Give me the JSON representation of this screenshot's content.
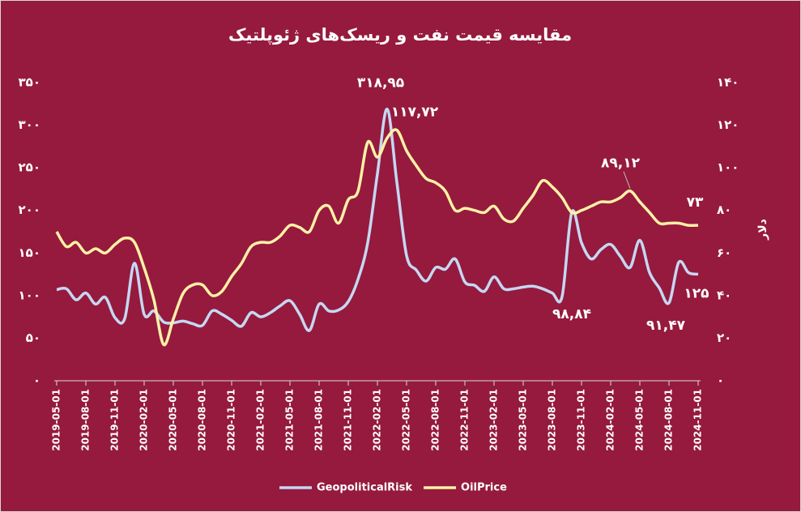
{
  "chart_data": {
    "type": "line",
    "title": "مقایسه قیمت نفت و ریسک‌های ژئوپلتیک",
    "y2label": "دلار",
    "categories": [
      "2019-05-01",
      null,
      null,
      "2019-08-01",
      null,
      null,
      "2019-11-01",
      null,
      null,
      "2020-02-01",
      null,
      null,
      "2020-05-01",
      null,
      null,
      "2020-08-01",
      null,
      null,
      "2020-11-01",
      null,
      null,
      "2021-02-01",
      null,
      null,
      "2021-05-01",
      null,
      null,
      "2021-08-01",
      null,
      null,
      "2021-11-01",
      null,
      null,
      "2022-02-01",
      null,
      null,
      "2022-05-01",
      null,
      null,
      "2022-08-01",
      null,
      null,
      "2022-11-01",
      null,
      null,
      "2023-02-01",
      null,
      null,
      "2023-05-01",
      null,
      null,
      "2023-08-01",
      null,
      null,
      "2023-11-01",
      null,
      null,
      "2024-02-01",
      null,
      null,
      "2024-05-01",
      null,
      null,
      "2024-08-01",
      null,
      null,
      "2024-11-01"
    ],
    "series": [
      {
        "name": "GeopoliticalRisk",
        "color": "#c6d7f2",
        "axis": "y",
        "values": [
          107,
          108,
          95,
          103,
          90,
          98,
          74,
          73,
          138,
          78,
          82,
          69,
          68,
          70,
          67,
          65,
          82,
          78,
          71,
          64,
          80,
          75,
          80,
          88,
          94,
          78,
          59,
          90,
          82,
          83,
          93,
          119,
          162,
          243,
          318.95,
          233,
          147,
          130,
          117,
          133,
          131,
          143,
          116,
          112,
          105,
          122,
          108,
          108,
          110,
          111,
          108,
          103,
          98.84,
          198,
          162,
          143,
          154,
          160,
          146,
          133,
          165,
          127,
          109,
          91.47,
          139,
          127,
          125
        ],
        "value_labels": [
          null,
          null,
          null,
          null,
          null,
          null,
          null,
          null,
          null,
          null,
          null,
          null,
          null,
          null,
          null,
          null,
          null,
          null,
          null,
          null,
          null,
          null,
          null,
          null,
          null,
          null,
          null,
          null,
          null,
          null,
          null,
          null,
          null,
          null,
          "۳۱۸,۹۵",
          null,
          null,
          null,
          null,
          null,
          null,
          null,
          null,
          null,
          null,
          null,
          null,
          null,
          null,
          null,
          null,
          null,
          "۹۸,۸۴",
          null,
          null,
          null,
          null,
          null,
          null,
          null,
          null,
          null,
          null,
          "۹۱,۴۷",
          null,
          null,
          "۱۲۵"
        ]
      },
      {
        "name": "OilPrice",
        "color": "#fdf1a6",
        "axis": "y2",
        "values": [
          70,
          63,
          65,
          60,
          62,
          60,
          64,
          67,
          65,
          53,
          38,
          17,
          29,
          41,
          45,
          45,
          40,
          42,
          49,
          55,
          63,
          65,
          65,
          68,
          73,
          72,
          70,
          80,
          82,
          74,
          85,
          89,
          112,
          105,
          114,
          117.72,
          108,
          101,
          95,
          93,
          89,
          80,
          81,
          80,
          79,
          82,
          76,
          75,
          81,
          87,
          94,
          91,
          86,
          79,
          80,
          82,
          84,
          84,
          86,
          89.12,
          84,
          79,
          74,
          74,
          74,
          73,
          73
        ],
        "value_labels": [
          null,
          null,
          null,
          null,
          null,
          null,
          null,
          null,
          null,
          null,
          null,
          null,
          null,
          null,
          null,
          null,
          null,
          null,
          null,
          null,
          null,
          null,
          null,
          null,
          null,
          null,
          null,
          null,
          null,
          null,
          null,
          null,
          null,
          null,
          null,
          "۱۱۷,۷۲",
          null,
          null,
          null,
          null,
          null,
          null,
          null,
          null,
          null,
          null,
          null,
          null,
          null,
          null,
          null,
          null,
          null,
          null,
          null,
          null,
          null,
          null,
          null,
          "۸۹,۱۲",
          null,
          null,
          null,
          null,
          null,
          null,
          "۷۳"
        ]
      }
    ],
    "ylim": [
      0,
      350
    ],
    "yticks": [
      {
        "value": 0,
        "label": "۰"
      },
      {
        "value": 50,
        "label": "۵۰"
      },
      {
        "value": 100,
        "label": "۱۰۰"
      },
      {
        "value": 150,
        "label": "۱۵۰"
      },
      {
        "value": 200,
        "label": "۲۰۰"
      },
      {
        "value": 250,
        "label": "۲۵۰"
      },
      {
        "value": 300,
        "label": "۳۰۰"
      },
      {
        "value": 350,
        "label": "۳۵۰"
      }
    ],
    "y2lim": [
      0,
      140
    ],
    "y2ticks": [
      {
        "value": 0,
        "label": "۰"
      },
      {
        "value": 20,
        "label": "۲۰"
      },
      {
        "value": 40,
        "label": "۴۰"
      },
      {
        "value": 60,
        "label": "۶۰"
      },
      {
        "value": 80,
        "label": "۸۰"
      },
      {
        "value": 100,
        "label": "۱۰۰"
      },
      {
        "value": 120,
        "label": "۱۲۰"
      },
      {
        "value": 140,
        "label": "۱۴۰"
      }
    ],
    "grid": false,
    "legend": "bottom"
  }
}
